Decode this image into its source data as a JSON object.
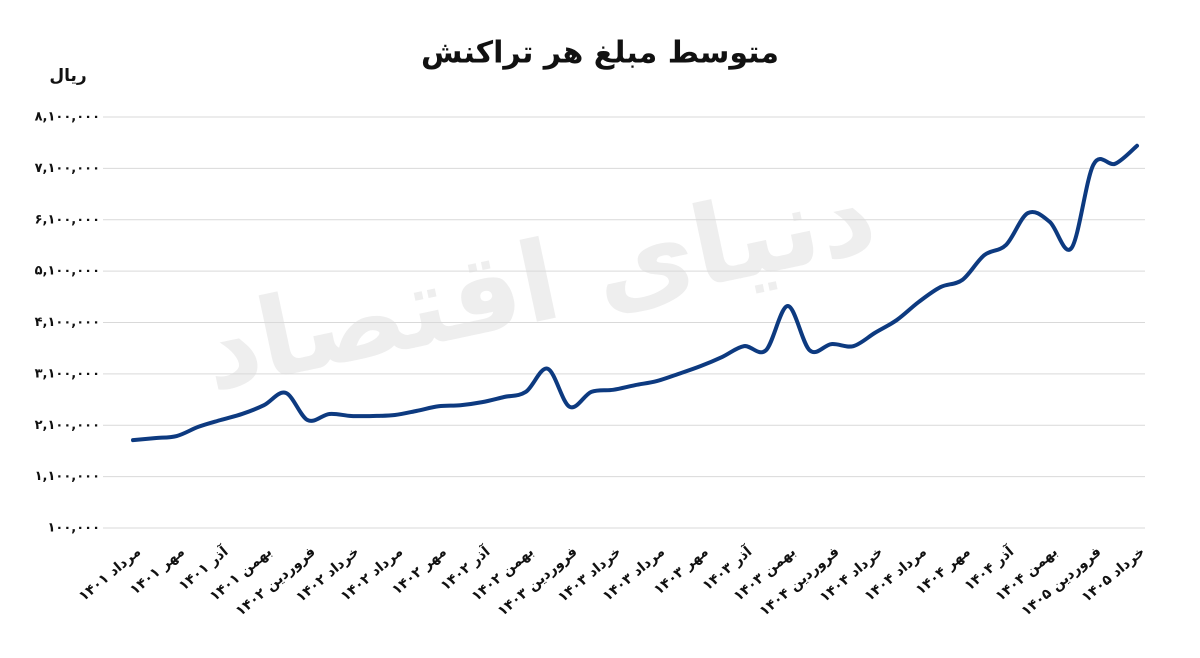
{
  "chart_data": {
    "type": "line",
    "title": "متوسط مبلغ هر تراکنش",
    "y_label": "ریال",
    "watermark": "دنیای اقتصاد",
    "categories": [
      "مرداد ۱۴۰۱",
      null,
      "مهر ۱۴۰۱",
      null,
      "آذر ۱۴۰۱",
      null,
      "بهمن ۱۴۰۱",
      null,
      "فروردین ۱۴۰۲",
      null,
      "خرداد ۱۴۰۲",
      null,
      "مرداد ۱۴۰۲",
      null,
      "مهر ۱۴۰۲",
      null,
      "آذر ۱۴۰۲",
      null,
      "بهمن ۱۴۰۲",
      null,
      "فروردین ۱۴۰۳",
      null,
      "خرداد ۱۴۰۳",
      null,
      "مرداد ۱۴۰۳",
      null,
      "مهر ۱۴۰۳",
      null,
      "آذر ۱۴۰۳",
      null,
      "بهمن ۱۴۰۳",
      null,
      "فروردین ۱۴۰۴",
      null,
      "خرداد ۱۴۰۴",
      null,
      "مرداد ۱۴۰۴",
      null,
      "مهر ۱۴۰۴",
      null,
      "آذر ۱۴۰۴",
      null,
      "بهمن ۱۴۰۴",
      null,
      "فروردین ۱۴۰۵",
      null,
      "خرداد ۱۴۰۵"
    ],
    "series": [
      {
        "color": "#0d3a80",
        "values": [
          1810000,
          1850000,
          1890000,
          2070000,
          2200000,
          2320000,
          2490000,
          2730000,
          2200000,
          2320000,
          2280000,
          2280000,
          2300000,
          2380000,
          2470000,
          2490000,
          2550000,
          2650000,
          2750000,
          3200000,
          2460000,
          2750000,
          2790000,
          2880000,
          2960000,
          3100000,
          3250000,
          3430000,
          3640000,
          3560000,
          4420000,
          3560000,
          3680000,
          3640000,
          3900000,
          4150000,
          4500000,
          4790000,
          4930000,
          5410000,
          5610000,
          6230000,
          6060000,
          5550000,
          7170000,
          7190000,
          7540000
        ]
      }
    ],
    "ylim": [
      100000,
      8100000
    ],
    "yticks": [
      {
        "value": 100000,
        "label": "۱۰۰,۰۰۰"
      },
      {
        "value": 1100000,
        "label": "۱,۱۰۰,۰۰۰"
      },
      {
        "value": 2100000,
        "label": "۲,۱۰۰,۰۰۰"
      },
      {
        "value": 3100000,
        "label": "۳,۱۰۰,۰۰۰"
      },
      {
        "value": 4100000,
        "label": "۴,۱۰۰,۰۰۰"
      },
      {
        "value": 5100000,
        "label": "۵,۱۰۰,۰۰۰"
      },
      {
        "value": 6100000,
        "label": "۶,۱۰۰,۰۰۰"
      },
      {
        "value": 7100000,
        "label": "۷,۱۰۰,۰۰۰"
      },
      {
        "value": 8100000,
        "label": "۸,۱۰۰,۰۰۰"
      }
    ],
    "grid": true
  }
}
